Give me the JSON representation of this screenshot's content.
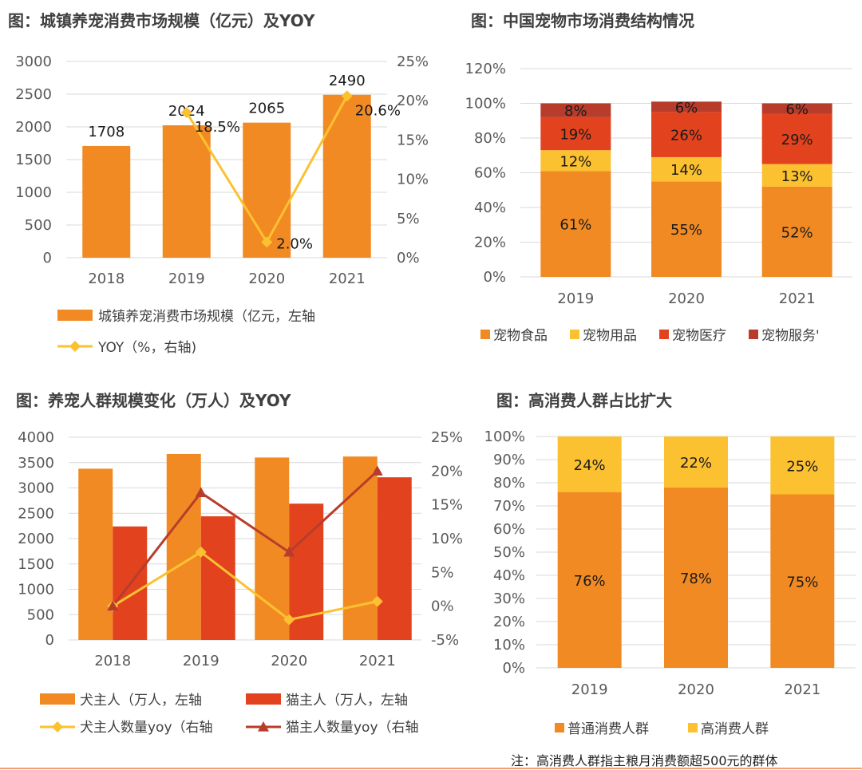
{
  "colors": {
    "orange": "#F28A23",
    "yellow": "#FCC131",
    "red": "#E2431E",
    "darkred": "#B83C2C",
    "line_yellow": "#FCC131",
    "line_darkred": "#B83C2C",
    "grid": "#D9D9D9"
  },
  "chart_data": [
    {
      "id": "market",
      "type": "bar",
      "title": "图：城镇养宠消费市场规模（亿元）及YOY",
      "categories": [
        "2018",
        "2019",
        "2020",
        "2021"
      ],
      "series": [
        {
          "name": "城镇养宠消费市场规模（亿元，左轴",
          "kind": "bar",
          "axis": "left",
          "values": [
            1708,
            2024,
            2065,
            2490
          ]
        },
        {
          "name": "YOY（%，右轴)",
          "kind": "line",
          "axis": "right",
          "values": [
            null,
            18.5,
            2.0,
            20.6
          ]
        }
      ],
      "bar_labels": [
        "1708",
        "2024",
        "2065",
        "2490"
      ],
      "line_labels": [
        "",
        "18.5%",
        "2.0%",
        "20.6%"
      ],
      "y_left": {
        "min": 0,
        "max": 3000,
        "ticks": [
          "0",
          "500",
          "1000",
          "1500",
          "2000",
          "2500",
          "3000"
        ]
      },
      "y_right": {
        "min": 0,
        "max": 25,
        "ticks": [
          "0%",
          "5%",
          "10%",
          "15%",
          "20%",
          "25%"
        ]
      }
    },
    {
      "id": "structure",
      "type": "bar",
      "stacked": true,
      "title": "图：中国宠物市场消费结构情况",
      "categories": [
        "2019",
        "2020",
        "2021"
      ],
      "series": [
        {
          "name": "宠物食品",
          "values": [
            61,
            55,
            52
          ]
        },
        {
          "name": "宠物用品",
          "values": [
            12,
            14,
            13
          ]
        },
        {
          "name": "宠物医疗",
          "values": [
            19,
            26,
            29
          ]
        },
        {
          "name": "宠物服务'",
          "values": [
            8,
            6,
            6
          ]
        }
      ],
      "y": {
        "min": 0,
        "max": 120,
        "ticks": [
          "0%",
          "20%",
          "40%",
          "60%",
          "80%",
          "100%",
          "120%"
        ]
      }
    },
    {
      "id": "owners",
      "type": "bar",
      "title": "图：养宠人群规模变化（万人）及YOY",
      "categories": [
        "2018",
        "2019",
        "2020",
        "2021"
      ],
      "series": [
        {
          "name": "犬主人（万人，左轴",
          "kind": "bar",
          "axis": "left",
          "values": [
            3380,
            3670,
            3600,
            3620
          ]
        },
        {
          "name": "猫主人（万人，左轴",
          "kind": "bar",
          "axis": "left",
          "values": [
            2240,
            2440,
            2690,
            3210
          ]
        },
        {
          "name": "犬主人数量yoy（右轴",
          "kind": "line",
          "axis": "right",
          "values": [
            0,
            8.0,
            -2.0,
            0.7
          ]
        },
        {
          "name": "猫主人数量yoy（右轴",
          "kind": "line",
          "axis": "right",
          "values": [
            0,
            16.8,
            8.0,
            20.0
          ]
        }
      ],
      "y_left": {
        "min": 0,
        "max": 4000,
        "ticks": [
          "0",
          "500",
          "1000",
          "1500",
          "2000",
          "2500",
          "3000",
          "3500",
          "4000"
        ]
      },
      "y_right": {
        "min": -5,
        "max": 25,
        "ticks": [
          "-5%",
          "0%",
          "5%",
          "10%",
          "15%",
          "20%",
          "25%"
        ]
      }
    },
    {
      "id": "highspend",
      "type": "bar",
      "stacked": true,
      "title": "图：高消费人群占比扩大",
      "categories": [
        "2019",
        "2020",
        "2021"
      ],
      "series": [
        {
          "name": "普通消费人群",
          "values": [
            76,
            78,
            75
          ]
        },
        {
          "name": "高消费人群",
          "values": [
            24,
            22,
            25
          ]
        }
      ],
      "y": {
        "min": 0,
        "max": 100,
        "ticks": [
          "0%",
          "10%",
          "20%",
          "30%",
          "40%",
          "50%",
          "60%",
          "70%",
          "80%",
          "90%",
          "100%"
        ]
      }
    }
  ],
  "note": "注：高消费人群指主粮月消费额超500元的群体"
}
